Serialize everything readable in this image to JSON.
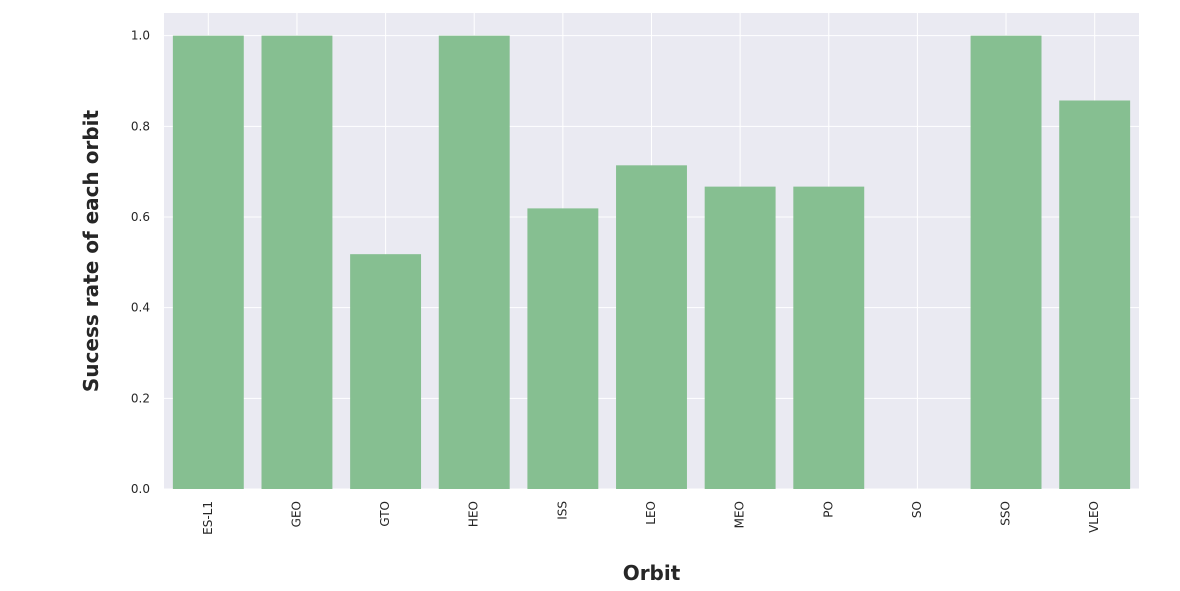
{
  "chart_data": {
    "type": "bar",
    "title": "",
    "xlabel": "Orbit",
    "ylabel": "Sucess rate of each orbit",
    "categories": [
      "ES-L1",
      "GEO",
      "GTO",
      "HEO",
      "ISS",
      "LEO",
      "MEO",
      "PO",
      "SO",
      "SSO",
      "VLEO"
    ],
    "values": [
      1.0,
      1.0,
      0.518,
      1.0,
      0.619,
      0.714,
      0.667,
      0.667,
      0.0,
      1.0,
      0.857
    ],
    "ylim": [
      0,
      1.05
    ],
    "yticks": [
      "0.0",
      "0.2",
      "0.4",
      "0.6",
      "0.8",
      "1.0"
    ],
    "grid": true,
    "colors": {
      "bar": "#86bf91",
      "plot_background": "#eaeaf2",
      "grid": "#ffffff"
    }
  }
}
